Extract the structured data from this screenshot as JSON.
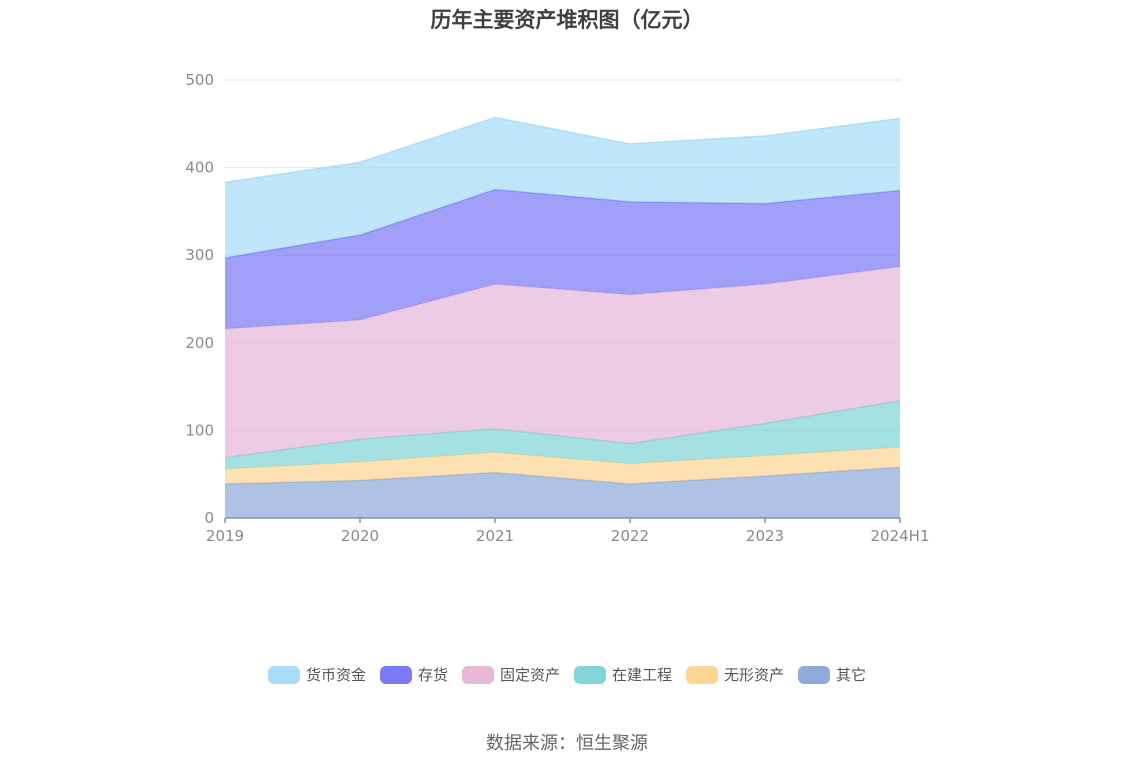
{
  "chart_data": {
    "type": "area",
    "stacked": true,
    "title": "历年主要资产堆积图（亿元）",
    "categories": [
      "2019",
      "2020",
      "2021",
      "2022",
      "2023",
      "2024H1"
    ],
    "ylim": [
      0,
      500
    ],
    "yticks": [
      0,
      100,
      200,
      300,
      400,
      500
    ],
    "grid": true,
    "legend_position": "bottom",
    "series": [
      {
        "name": "其它",
        "color": "#8fabdc",
        "values": [
          39,
          43,
          52,
          39,
          48,
          58
        ]
      },
      {
        "name": "无形资产",
        "color": "#fdd694",
        "values": [
          17,
          21,
          23,
          23,
          23,
          23
        ]
      },
      {
        "name": "在建工程",
        "color": "#82d4d8",
        "values": [
          13,
          26,
          27,
          23,
          37,
          53
        ]
      },
      {
        "name": "固定资产",
        "color": "#e8b7d9",
        "values": [
          147,
          136,
          165,
          170,
          159,
          153
        ]
      },
      {
        "name": "存货",
        "color": "#7b7bf5",
        "values": [
          81,
          97,
          108,
          106,
          92,
          87
        ]
      },
      {
        "name": "货币资金",
        "color": "#a8dcf8",
        "values": [
          86,
          83,
          82,
          66,
          77,
          82
        ]
      }
    ],
    "legend_order": [
      "货币资金",
      "存货",
      "固定资产",
      "在建工程",
      "无形资产",
      "其它"
    ]
  },
  "source": "数据来源：恒生聚源"
}
